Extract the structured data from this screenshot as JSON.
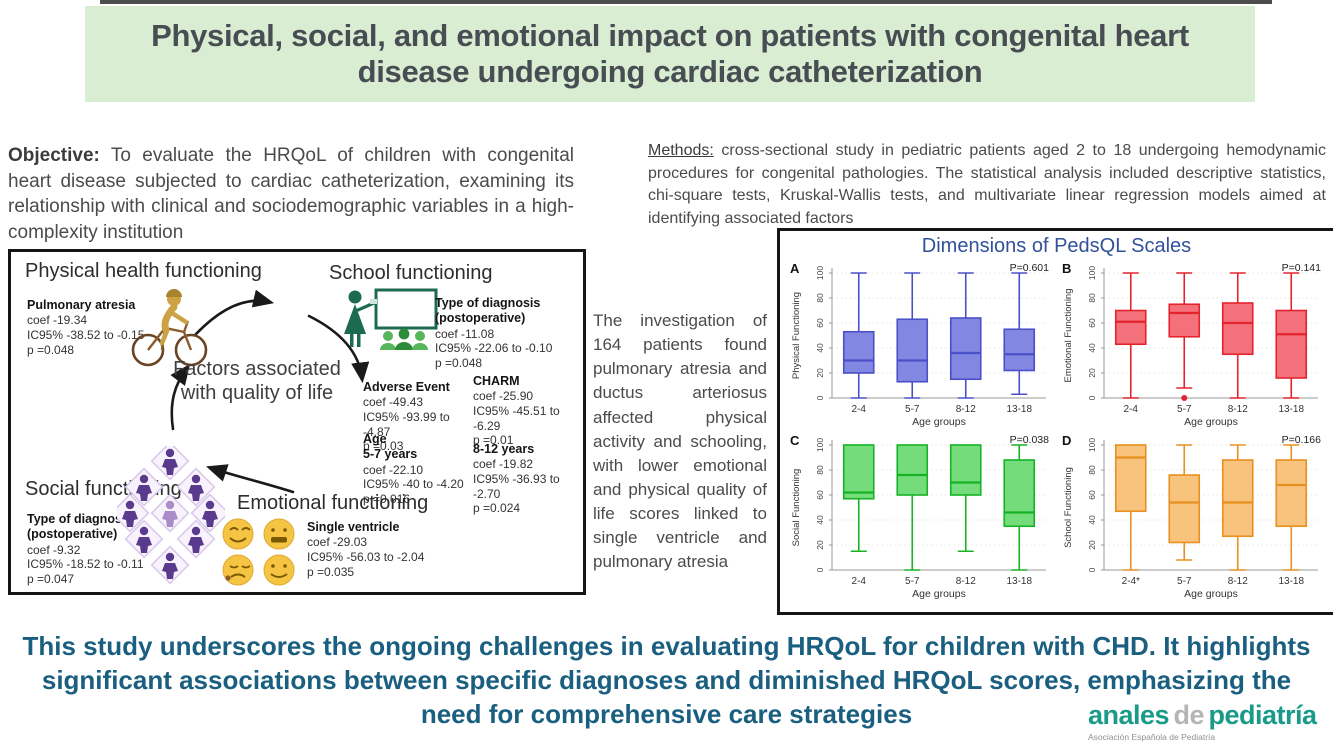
{
  "banner": {
    "title": "Physical, social, and emotional impact on patients with congenital heart disease undergoing cardiac catheterization"
  },
  "objective": {
    "label": "Objective:",
    "text": "To evaluate the HRQoL of children with congenital heart disease subjected to cardiac catheterization, examining its relationship with clinical and sociodemographic variables in a high-complexity institution"
  },
  "methods": {
    "label": "Methods:",
    "text": "cross-sectional study in pediatric patients aged 2 to 18 undergoing hemodynamic procedures for congenital pathologies. The statistical analysis included descriptive statistics, chi-square tests, Kruskal-Wallis tests, and multivariate linear regression models aimed at identifying associated factors"
  },
  "diagram": {
    "center_text": "Factors associated with quality of life",
    "physical": {
      "title": "Physical health functioning",
      "stat": {
        "n1": "Pulmonary atresia",
        "l1": "coef -19.34",
        "l2": "IC95% -38.52 to -0.15",
        "l3": "p =0.048"
      }
    },
    "school": {
      "title": "School functioning",
      "diagnosis": {
        "n1": "Type of diagnosis",
        "n2": "(postoperative)",
        "l1": "coef -11.08",
        "l2": "IC95% -22.06 to -0.10",
        "l3": "p =0.048"
      },
      "adverse": {
        "n1": "Adverse Event",
        "l1": "coef -49.43",
        "l2": "IC95% -93.99 to -4.87",
        "l3": "p =0.03"
      },
      "charm": {
        "n1": "CHARM",
        "l1": "coef -25.90",
        "l2": "IC95% -45.51 to -6.29",
        "l3": "p =0.01"
      },
      "age57": {
        "n1": "Age",
        "n2": "5-7 years",
        "l1": "coef -22.10",
        "l2": "IC95% -40 to -4.20",
        "l3": "p =0.016"
      },
      "age812": {
        "n1": "8-12 years",
        "l1": "coef -19.82",
        "l2": "IC95% -36.93 to -2.70",
        "l3": "p =0.024"
      }
    },
    "social": {
      "title": "Social functioning",
      "stat": {
        "n1": "Type of diagnosis",
        "n2": "(postoperative)",
        "l1": "coef -9.32",
        "l2": "IC95% -18.52 to -0.11",
        "l3": "p =0.047"
      }
    },
    "emotional": {
      "title": "Emotional functioning",
      "stat": {
        "n1": "Single ventricle",
        "l1": "coef -29.03",
        "l2": "IC95% -56.03 to -2.04",
        "l3": "p =0.035"
      }
    },
    "icons": [
      "cyclist-icon",
      "teacher-whiteboard-icon",
      "crowd-icon",
      "emoji-faces-icon",
      "cycle-arrows"
    ]
  },
  "finding": {
    "text": "The investigation of 164 patients found pulmonary atresia and ductus arteriosus affected physical activity and schooling, with lower emotional and physical quality of life scores linked to single ventricle and pulmonary atresia"
  },
  "chart_data": {
    "type": "boxplot",
    "title": "Dimensions of PedsQL Scales",
    "title_color": "#31519b",
    "grid": "horizontal-dotted",
    "ylim": [
      0,
      100
    ],
    "panels": [
      {
        "id": "A",
        "p_label": "P=0.601",
        "ylabel": "Physical Functioning",
        "xlabel": "Age groups",
        "categories": [
          "2-4",
          "5-7",
          "8-12",
          "13-18"
        ],
        "yticks": [
          0,
          20,
          40,
          60,
          80,
          100
        ],
        "fill": "#8287e2",
        "stroke": "#4a50c8",
        "boxes": [
          {
            "lo": 0,
            "q1": 20,
            "med": 30,
            "q3": 53,
            "hi": 100
          },
          {
            "lo": 0,
            "q1": 13,
            "med": 30,
            "q3": 63,
            "hi": 100
          },
          {
            "lo": 0,
            "q1": 15,
            "med": 36,
            "q3": 64,
            "hi": 100
          },
          {
            "lo": 3,
            "q1": 22,
            "med": 35,
            "q3": 55,
            "hi": 100
          }
        ]
      },
      {
        "id": "B",
        "p_label": "P=0.141",
        "ylabel": "Emotional Functioning",
        "xlabel": "Age groups",
        "categories": [
          "2-4",
          "5-7",
          "8-12",
          "13-18"
        ],
        "yticks": [
          0,
          20,
          40,
          60,
          80,
          100
        ],
        "fill": "#f4707b",
        "stroke": "#e3242f",
        "boxes": [
          {
            "lo": 0,
            "q1": 43,
            "med": 61,
            "q3": 70,
            "hi": 100
          },
          {
            "lo": 8,
            "q1": 49,
            "med": 68,
            "q3": 75,
            "hi": 100,
            "outliers": [
              0
            ]
          },
          {
            "lo": 0,
            "q1": 35,
            "med": 60,
            "q3": 76,
            "hi": 100
          },
          {
            "lo": 0,
            "q1": 16,
            "med": 51,
            "q3": 70,
            "hi": 100
          }
        ]
      },
      {
        "id": "C",
        "p_label": "P=0.038",
        "ylabel": "Social Functioning",
        "xlabel": "Age groups",
        "categories": [
          "2-4",
          "5-7",
          "8-12",
          "13-18"
        ],
        "yticks": [
          0,
          20,
          40,
          60,
          80,
          100
        ],
        "fill": "#74dc7b",
        "stroke": "#16b325",
        "boxes": [
          {
            "lo": 15,
            "q1": 57,
            "med": 62,
            "q3": 100,
            "hi": 100
          },
          {
            "lo": 0,
            "q1": 60,
            "med": 76,
            "q3": 100,
            "hi": 100
          },
          {
            "lo": 15,
            "q1": 60,
            "med": 70,
            "q3": 100,
            "hi": 100
          },
          {
            "lo": 0,
            "q1": 35,
            "med": 46,
            "q3": 88,
            "hi": 100
          }
        ]
      },
      {
        "id": "D",
        "p_label": "P=0.166",
        "ylabel": "School Functioning",
        "xlabel": "Age groups",
        "categories": [
          "2-4*",
          "5-7",
          "8-12",
          "13-18"
        ],
        "yticks": [
          0,
          20,
          40,
          60,
          80,
          100
        ],
        "fill": "#f8c37c",
        "stroke": "#e89020",
        "boxes": [
          {
            "lo": 0,
            "q1": 47,
            "med": 90,
            "q3": 100,
            "hi": 100
          },
          {
            "lo": 8,
            "q1": 22,
            "med": 54,
            "q3": 76,
            "hi": 100
          },
          {
            "lo": 0,
            "q1": 27,
            "med": 54,
            "q3": 88,
            "hi": 100
          },
          {
            "lo": 0,
            "q1": 35,
            "med": 68,
            "q3": 88,
            "hi": 100
          }
        ]
      }
    ]
  },
  "conclusion": {
    "text": "This study underscores the ongoing challenges in evaluating HRQoL for children with CHD. It highlights significant associations between specific diagnoses and diminished HRQoL scores, emphasizing the need for comprehensive care strategies"
  },
  "logo": {
    "word1": "anales",
    "word2": "de",
    "word3": "pediatría",
    "subtitle": "Asociación Española de Pediatría",
    "accent_color": "#1a9b8a"
  },
  "colors": {
    "banner_bg": "#d9edd3",
    "title_text": "#474d52",
    "conclusion_text": "#1a5f80"
  }
}
